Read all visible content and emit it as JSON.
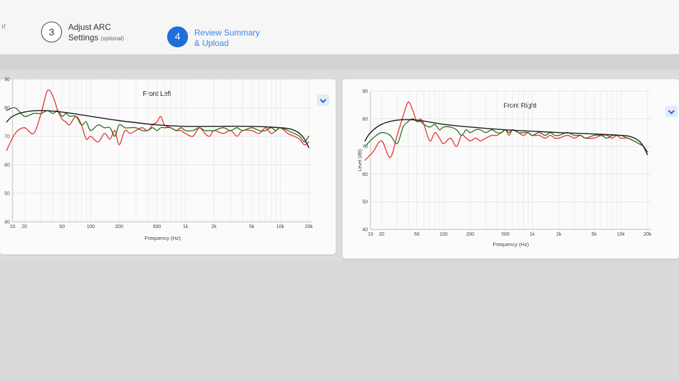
{
  "stepper": {
    "partial_label": "ır",
    "step3": {
      "number": "3",
      "label_line1": "Adjust ARC",
      "label_line2": "Settings",
      "label_optional": "(optional)"
    },
    "step4": {
      "number": "4",
      "label_line1": "Review Summary",
      "label_line2": "& Upload"
    }
  },
  "colors": {
    "measured": "#e8312a",
    "corrected": "#2e6b1f",
    "target": "#1a1a1a",
    "accent": "#1f6fd6"
  },
  "icons": {
    "expand": "chevron-down-icon"
  },
  "charts": [
    {
      "title": "Front Left",
      "xlabel": "Frequency (Hz)",
      "ylabel": "",
      "y_ticks": [
        "40",
        "50",
        "60",
        "70",
        "80",
        "90"
      ],
      "x_ticks": [
        "15",
        "20",
        "50",
        "100",
        "200",
        "500",
        "1k",
        "2k",
        "5k",
        "10k",
        "20k"
      ]
    },
    {
      "title": "Front Right",
      "xlabel": "Frequency (Hz)",
      "ylabel": "Level (dB)",
      "y_ticks": [
        "40",
        "50",
        "60",
        "70",
        "80",
        "90"
      ],
      "x_ticks": [
        "15",
        "20",
        "50",
        "100",
        "200",
        "500",
        "1k",
        "2k",
        "5k",
        "10k",
        "20k"
      ]
    }
  ],
  "chart_data": [
    {
      "type": "line",
      "title": "Front Left",
      "xlabel": "Frequency (Hz)",
      "ylabel": "",
      "xscale": "log",
      "xlim": [
        15,
        22000
      ],
      "ylim": [
        40,
        90
      ],
      "grid": true,
      "series": [
        {
          "color": "#e8312a",
          "x": [
            13,
            16,
            20,
            25,
            30,
            35,
            40,
            45,
            50,
            55,
            60,
            70,
            80,
            90,
            100,
            120,
            140,
            160,
            180,
            200,
            230,
            260,
            300,
            350,
            400,
            450,
            500,
            550,
            600,
            700,
            800,
            900,
            1000,
            1200,
            1400,
            1600,
            1800,
            2000,
            2500,
            3000,
            3500,
            4000,
            5000,
            6000,
            7000,
            8000,
            9000,
            10000,
            12000,
            14000,
            16000,
            18000,
            20000
          ],
          "y": [
            65,
            71,
            73,
            71,
            78,
            86,
            84,
            79,
            76,
            75,
            74,
            77,
            74,
            69,
            70,
            68,
            71,
            69,
            72,
            67,
            72,
            71,
            72,
            73,
            72,
            74,
            75,
            77,
            74,
            73,
            72,
            72,
            71,
            70,
            73,
            71,
            70,
            72,
            71,
            72,
            70,
            72,
            72,
            71,
            73,
            71,
            72,
            73,
            71,
            70,
            69,
            67,
            68
          ]
        },
        {
          "color": "#2e6b1f",
          "x": [
            13,
            16,
            20,
            25,
            30,
            35,
            40,
            45,
            50,
            55,
            60,
            70,
            80,
            90,
            100,
            120,
            140,
            160,
            180,
            200,
            230,
            260,
            300,
            350,
            400,
            450,
            500,
            550,
            600,
            700,
            800,
            900,
            1000,
            1200,
            1400,
            1600,
            1800,
            2000,
            2500,
            3000,
            3500,
            4000,
            5000,
            6000,
            7000,
            8000,
            9000,
            10000,
            12000,
            14000,
            16000,
            18000,
            20000
          ],
          "y": [
            79,
            80,
            77,
            78,
            78,
            79,
            78,
            79,
            77,
            78,
            77,
            77,
            74,
            75,
            72,
            74,
            73,
            73,
            70,
            74,
            73,
            73,
            73,
            72,
            72,
            73,
            72,
            73,
            73,
            73,
            72,
            73,
            72,
            72,
            73,
            72,
            72,
            72,
            73,
            72,
            73,
            72,
            73,
            72,
            72,
            73,
            72,
            73,
            72,
            71,
            70,
            68,
            70
          ]
        },
        {
          "color": "#1a1a1a",
          "x": [
            13,
            15,
            20,
            30,
            50,
            100,
            200,
            500,
            1000,
            2000,
            5000,
            10000,
            13000,
            16000,
            18000,
            20000
          ],
          "y": [
            75,
            77,
            78.5,
            79,
            78.5,
            77,
            75.5,
            74,
            73.5,
            73.5,
            73.5,
            73,
            72.5,
            71,
            69,
            66
          ]
        }
      ]
    },
    {
      "type": "line",
      "title": "Front Right",
      "xlabel": "Frequency (Hz)",
      "ylabel": "Level (dB)",
      "xscale": "log",
      "xlim": [
        15,
        22000
      ],
      "ylim": [
        40,
        90
      ],
      "grid": true,
      "series": [
        {
          "color": "#e8312a",
          "x": [
            13,
            16,
            20,
            25,
            30,
            35,
            40,
            45,
            50,
            55,
            60,
            70,
            80,
            90,
            100,
            120,
            140,
            160,
            180,
            200,
            230,
            260,
            300,
            350,
            400,
            450,
            500,
            550,
            600,
            700,
            800,
            900,
            1000,
            1200,
            1400,
            1600,
            1800,
            2000,
            2500,
            3000,
            3500,
            4000,
            5000,
            6000,
            7000,
            8000,
            9000,
            10000,
            12000,
            14000,
            16000,
            18000,
            20000
          ],
          "y": [
            65,
            68,
            72,
            66,
            74,
            81,
            86,
            83,
            79,
            80,
            78,
            72,
            75,
            73,
            71,
            73,
            70,
            74,
            73,
            72,
            73,
            72,
            73,
            74,
            74,
            75,
            76,
            74,
            76,
            75,
            74,
            75,
            74,
            74,
            73,
            74,
            73,
            73,
            74,
            73,
            74,
            73,
            73,
            74,
            74,
            73,
            74,
            73,
            73,
            72,
            71,
            70,
            68
          ]
        },
        {
          "color": "#2e6b1f",
          "x": [
            13,
            16,
            20,
            25,
            30,
            35,
            40,
            45,
            50,
            55,
            60,
            70,
            80,
            90,
            100,
            120,
            140,
            160,
            180,
            200,
            230,
            260,
            300,
            350,
            400,
            450,
            500,
            550,
            600,
            700,
            800,
            900,
            1000,
            1200,
            1400,
            1600,
            1800,
            2000,
            2500,
            3000,
            3500,
            4000,
            5000,
            6000,
            7000,
            8000,
            9000,
            10000,
            12000,
            14000,
            16000,
            18000,
            20000
          ],
          "y": [
            70,
            73,
            75,
            74,
            71,
            77,
            79,
            80,
            79,
            79,
            78,
            77,
            78,
            76,
            77,
            77,
            76,
            74,
            76,
            75,
            76,
            76,
            75,
            76,
            75,
            75,
            76,
            75,
            76,
            75,
            75,
            75,
            74,
            75,
            74,
            75,
            74,
            74,
            75,
            74,
            74,
            73,
            74,
            74,
            73,
            74,
            74,
            74,
            73,
            72,
            71,
            70,
            68
          ]
        },
        {
          "color": "#1a1a1a",
          "x": [
            13,
            15,
            20,
            30,
            50,
            100,
            200,
            500,
            1000,
            2000,
            5000,
            10000,
            13000,
            16000,
            18000,
            20000
          ],
          "y": [
            72,
            75,
            78,
            79.5,
            79.5,
            78,
            77,
            76,
            75.5,
            75,
            74.5,
            74,
            73.5,
            72,
            70,
            67
          ]
        }
      ]
    }
  ]
}
